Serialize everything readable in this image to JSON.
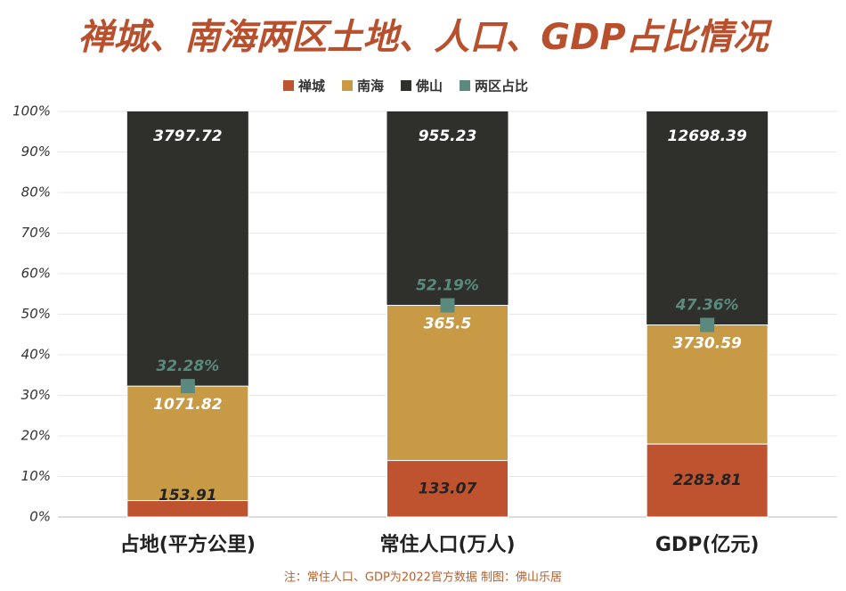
{
  "chart_data": {
    "type": "stacked_percent_bar",
    "title": "禅城、南海两区土地、人口、GDP占比情况",
    "categories": [
      "占地(平方公里)",
      "常住人口(万人)",
      "GDP(亿元)"
    ],
    "series": [
      {
        "name": "禅城",
        "color": "#c0532f",
        "values": [
          153.91,
          133.07,
          2283.81
        ]
      },
      {
        "name": "南海",
        "color": "#c99a45",
        "values": [
          1071.82,
          365.5,
          3730.59
        ]
      },
      {
        "name": "佛山",
        "color": "#2f302b",
        "values": [
          3797.72,
          955.23,
          12698.39
        ]
      },
      {
        "name": "两区占比",
        "color": "#5a8a7e",
        "values": [
          32.28,
          52.19,
          47.36
        ],
        "value_labels": [
          "32.28%",
          "52.19%",
          "47.36%"
        ]
      }
    ],
    "ylim": [
      0,
      100
    ],
    "yticks": [
      {
        "value": 0,
        "label": "0%"
      },
      {
        "value": 10,
        "label": "10%"
      },
      {
        "value": 20,
        "label": "20%"
      },
      {
        "value": 30,
        "label": "30%"
      },
      {
        "value": 40,
        "label": "40%"
      },
      {
        "value": 50,
        "label": "50%"
      },
      {
        "value": 60,
        "label": "60%"
      },
      {
        "value": 70,
        "label": "70%"
      },
      {
        "value": 80,
        "label": "80%"
      },
      {
        "value": 90,
        "label": "90%"
      },
      {
        "value": 100,
        "label": "100%"
      }
    ],
    "grid": true,
    "footnote": "注：常住人口、GDP为2022官方数据   制图：佛山乐居"
  }
}
